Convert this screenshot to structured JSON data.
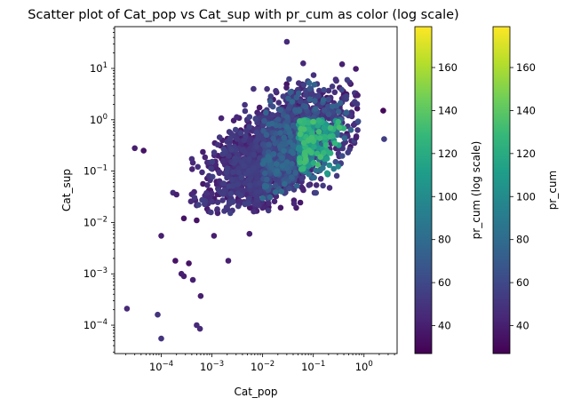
{
  "chart_data": {
    "type": "scatter",
    "title": "Scatter plot of Cat_pop vs Cat_sup with pr_cum as color (log scale)",
    "xlabel": "Cat_pop",
    "ylabel": "Cat_sup",
    "xscale": "log",
    "yscale": "log",
    "xlim": [
      1.2e-05,
      4.5
    ],
    "ylim": [
      2.8e-05,
      65
    ],
    "x_ticks": [
      {
        "value": 0.0001,
        "base": "10",
        "exp": "−4"
      },
      {
        "value": 0.001,
        "base": "10",
        "exp": "−3"
      },
      {
        "value": 0.01,
        "base": "10",
        "exp": "−2"
      },
      {
        "value": 0.1,
        "base": "10",
        "exp": "−1"
      },
      {
        "value": 1,
        "base": "10",
        "exp": "0"
      }
    ],
    "y_ticks": [
      {
        "value": 0.0001,
        "base": "10",
        "exp": "−4"
      },
      {
        "value": 0.001,
        "base": "10",
        "exp": "−3"
      },
      {
        "value": 0.01,
        "base": "10",
        "exp": "−2"
      },
      {
        "value": 0.1,
        "base": "10",
        "exp": "−1"
      },
      {
        "value": 1,
        "base": "10",
        "exp": "0"
      },
      {
        "value": 10,
        "base": "10",
        "exp": "1"
      }
    ],
    "grid": false,
    "colormap": "viridis",
    "color_range": [
      27,
      179
    ],
    "colorbars": [
      {
        "label": "pr_cum (log scale)",
        "ticks": [
          "40",
          "60",
          "80",
          "100",
          "120",
          "140",
          "160"
        ],
        "tick_values": [
          40,
          60,
          80,
          100,
          120,
          140,
          160
        ]
      },
      {
        "label": "pr_cum",
        "ticks": [
          "40",
          "60",
          "80",
          "100",
          "120",
          "140",
          "160"
        ],
        "tick_values": [
          40,
          60,
          80,
          100,
          120,
          140,
          160
        ]
      }
    ],
    "cluster": {
      "description": "dense cloud of a few thousand points",
      "x_range": [
        0.0003,
        0.6
      ],
      "y_range": [
        0.015,
        15
      ],
      "typical_color": 35,
      "high_color_region_x": [
        0.05,
        0.4
      ],
      "high_color_region_y": [
        0.08,
        1
      ],
      "high_color_value": 120
    },
    "outliers": [
      {
        "x": 2.1e-05,
        "y": 0.00021,
        "c": 45
      },
      {
        "x": 8.5e-05,
        "y": 0.00016,
        "c": 50
      },
      {
        "x": 0.0001,
        "y": 5.5e-05,
        "c": 50
      },
      {
        "x": 0.0005,
        "y": 0.0001,
        "c": 45
      },
      {
        "x": 0.00058,
        "y": 8.5e-05,
        "c": 45
      },
      {
        "x": 0.0006,
        "y": 0.00037,
        "c": 40
      },
      {
        "x": 0.00042,
        "y": 0.00076,
        "c": 40
      },
      {
        "x": 0.00028,
        "y": 0.0009,
        "c": 40
      },
      {
        "x": 0.00025,
        "y": 0.001,
        "c": 40
      },
      {
        "x": 0.00035,
        "y": 0.0016,
        "c": 35
      },
      {
        "x": 0.00019,
        "y": 0.0018,
        "c": 35
      },
      {
        "x": 0.0021,
        "y": 0.0018,
        "c": 40
      },
      {
        "x": 0.0001,
        "y": 0.0055,
        "c": 40
      },
      {
        "x": 0.0011,
        "y": 0.0055,
        "c": 40
      },
      {
        "x": 0.0005,
        "y": 0.011,
        "c": 35
      },
      {
        "x": 0.0055,
        "y": 0.006,
        "c": 40
      },
      {
        "x": 0.00028,
        "y": 0.012,
        "c": 35
      },
      {
        "x": 3e-05,
        "y": 0.28,
        "c": 40
      },
      {
        "x": 4.5e-05,
        "y": 0.25,
        "c": 35
      },
      {
        "x": 2.5,
        "y": 0.42,
        "c": 55
      },
      {
        "x": 2.4,
        "y": 1.5,
        "c": 30
      },
      {
        "x": 0.7,
        "y": 0.45,
        "c": 40
      },
      {
        "x": 0.75,
        "y": 3,
        "c": 40
      },
      {
        "x": 0.03,
        "y": 33,
        "c": 45
      },
      {
        "x": 0.00017,
        "y": 0.038,
        "c": 45
      },
      {
        "x": 0.0002,
        "y": 0.035,
        "c": 40
      }
    ]
  }
}
